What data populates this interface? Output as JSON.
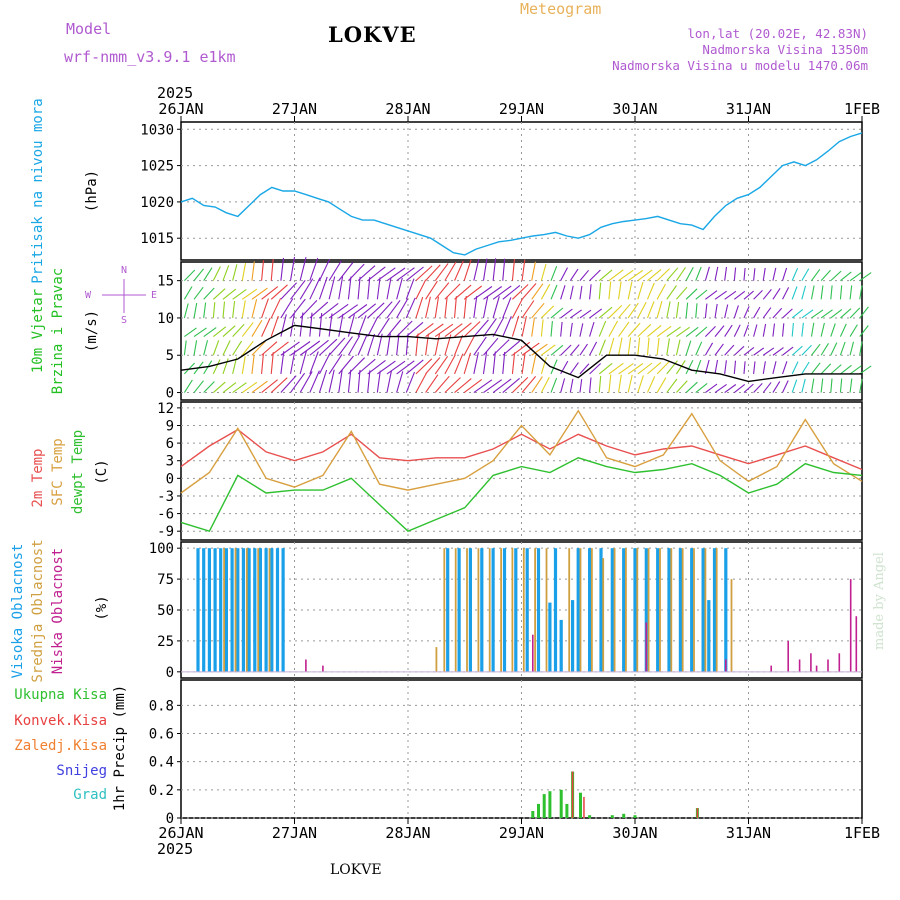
{
  "header": {
    "model_label": "Model",
    "model_version": "wrf-nmm_v3.9.1  e1km",
    "station": "LOKVE",
    "meteogram_label": "Meteogram",
    "coords": "lon,lat (20.02E, 42.83N)",
    "elevation": "Nadmorska Visina 1350m",
    "model_elevation": "Nadmorska Visina u modelu 1470.06m",
    "year_label": "2025",
    "footer_station": "LOKVE",
    "made_by": "made by Angel"
  },
  "colors": {
    "pressure": "#1aa7e6",
    "temp2m": "#e85050",
    "sfc": "#d8a040",
    "dewpt": "#2fc02f",
    "cloud_high": "#1aa0e8",
    "cloud_mid": "#d0a040",
    "cloud_low": "#c02090",
    "precip_total": "#2fc02f",
    "precip_conv": "#e84040",
    "precip_frz": "#f08030",
    "snow": "#4040e0",
    "hail": "#30c0c0",
    "wind_label": "#22c022",
    "compass": "#b05ad0"
  },
  "x_axis": {
    "labels": [
      "26JAN",
      "27JAN",
      "28JAN",
      "29JAN",
      "30JAN",
      "31JAN",
      "1FEB"
    ]
  },
  "chart_data": [
    {
      "type": "line",
      "panel": "pressure",
      "ylabel_left": "Pritisak na nivou mora",
      "ylabel_right": "(hPa)",
      "ylim": [
        1012,
        1031
      ],
      "yticks": [
        1015,
        1020,
        1025,
        1030
      ],
      "grid": true,
      "x_days": [
        0,
        0.1,
        0.2,
        0.3,
        0.4,
        0.5,
        0.6,
        0.7,
        0.8,
        0.9,
        1.0,
        1.1,
        1.2,
        1.3,
        1.4,
        1.5,
        1.6,
        1.7,
        1.8,
        1.9,
        2.0,
        2.1,
        2.2,
        2.3,
        2.4,
        2.5,
        2.6,
        2.7,
        2.8,
        2.9,
        3.0,
        3.1,
        3.2,
        3.3,
        3.4,
        3.5,
        3.6,
        3.7,
        3.8,
        3.9,
        4.0,
        4.1,
        4.2,
        4.3,
        4.4,
        4.5,
        4.6,
        4.7,
        4.8,
        4.9,
        5.0,
        5.1,
        5.2,
        5.3,
        5.4,
        5.5,
        5.6,
        5.7,
        5.8,
        5.9,
        6.0
      ],
      "series": [
        {
          "values": [
            1020,
            1020.5,
            1019.5,
            1019.3,
            1018.5,
            1018,
            1019.5,
            1021,
            1022,
            1021.5,
            1021.5,
            1021,
            1020.5,
            1020,
            1019,
            1018,
            1017.5,
            1017.5,
            1017,
            1016.5,
            1016,
            1015.5,
            1015,
            1014,
            1013,
            1012.7,
            1013.5,
            1014,
            1014.5,
            1014.7,
            1015,
            1015.3,
            1015.5,
            1015.8,
            1015.3,
            1015,
            1015.5,
            1016.5,
            1017,
            1017.3,
            1017.5,
            1017.7,
            1018,
            1017.5,
            1017,
            1016.8,
            1016.2,
            1018,
            1019.5,
            1020.5,
            1021,
            1022,
            1023.5,
            1025,
            1025.5,
            1025,
            1025.8,
            1027,
            1028.3,
            1029,
            1029.5
          ]
        }
      ]
    },
    {
      "type": "line",
      "panel": "wind",
      "ylabel_left": [
        "10m Vjetar",
        "Brzina i Pravac"
      ],
      "ylabel_right": "(m/s)",
      "ylim": [
        -1,
        17.5
      ],
      "yticks": [
        0,
        5,
        10,
        15
      ],
      "grid": true,
      "compass": {
        "n": "N",
        "e": "E",
        "w": "W",
        "s": "S"
      },
      "x_days": [
        0,
        0.25,
        0.5,
        0.75,
        1.0,
        1.25,
        1.5,
        1.75,
        2.0,
        2.25,
        2.5,
        2.75,
        3.0,
        3.25,
        3.5,
        3.75,
        4.0,
        4.25,
        4.5,
        4.75,
        5.0,
        5.25,
        5.5,
        5.75,
        6.0
      ],
      "series": [
        {
          "values": [
            3,
            3.5,
            4.5,
            7,
            9,
            8.5,
            8,
            7.5,
            7.5,
            7.2,
            7.5,
            7.8,
            7,
            3.5,
            2,
            5,
            5,
            4.5,
            3,
            2.5,
            1.5,
            2,
            2.5,
            2.5,
            2.5
          ]
        }
      ]
    },
    {
      "type": "line",
      "panel": "temperature",
      "ylabel_left": [
        "2m Temp",
        "SFC Temp",
        "dewpt Temp"
      ],
      "ylabel_right": "(C)",
      "ylim": [
        -10.5,
        13
      ],
      "yticks": [
        -9,
        -6,
        -3,
        0,
        3,
        6,
        9,
        12
      ],
      "grid": true,
      "x_days": [
        0,
        0.25,
        0.5,
        0.75,
        1.0,
        1.25,
        1.5,
        1.75,
        2.0,
        2.25,
        2.5,
        2.75,
        3.0,
        3.25,
        3.5,
        3.75,
        4.0,
        4.25,
        4.5,
        4.75,
        5.0,
        5.25,
        5.5,
        5.75,
        6.0
      ],
      "series": [
        {
          "name": "2m Temp",
          "values": [
            2,
            5.5,
            8.3,
            4.5,
            3,
            4.5,
            7.5,
            3.5,
            3,
            3.5,
            3.5,
            5,
            7.5,
            5,
            7.5,
            5.5,
            4,
            5,
            5.5,
            4,
            2.5,
            4,
            5.5,
            3.5,
            1.5
          ]
        },
        {
          "name": "SFC Temp",
          "values": [
            -2.5,
            1,
            8.5,
            0,
            -1.5,
            0.5,
            8,
            -1,
            -2,
            -1,
            0,
            3,
            9,
            4,
            11.5,
            3.5,
            2,
            4,
            11,
            3,
            -0.5,
            2,
            10,
            2.5,
            -0.5
          ]
        },
        {
          "name": "dewpt Temp",
          "values": [
            -7.5,
            -9,
            0.5,
            -2.5,
            -2,
            -2,
            0,
            -4.5,
            -9,
            -7,
            -5,
            0.5,
            2,
            1,
            3.5,
            2,
            1,
            1.5,
            2.5,
            0.5,
            -2.5,
            -1,
            2.5,
            1,
            0.5
          ]
        }
      ]
    },
    {
      "type": "bar",
      "panel": "clouds",
      "ylabel_left": [
        "Visoka Oblacnost",
        "Srednja Oblacnost",
        "Niska Oblacnost"
      ],
      "ylabel_right": "(%)",
      "ylim": [
        -5,
        105
      ],
      "yticks": [
        0,
        25,
        50,
        75,
        100
      ],
      "grid": true,
      "series": [
        {
          "name": "Visoka Oblacnost",
          "points": [
            [
              0.15,
              100
            ],
            [
              0.2,
              100
            ],
            [
              0.25,
              100
            ],
            [
              0.3,
              100
            ],
            [
              0.35,
              100
            ],
            [
              0.4,
              100
            ],
            [
              0.45,
              100
            ],
            [
              0.5,
              100
            ],
            [
              0.55,
              100
            ],
            [
              0.6,
              100
            ],
            [
              0.65,
              100
            ],
            [
              0.7,
              100
            ],
            [
              0.75,
              100
            ],
            [
              0.8,
              100
            ],
            [
              0.85,
              100
            ],
            [
              0.9,
              100
            ],
            [
              2.35,
              100
            ],
            [
              2.45,
              100
            ],
            [
              2.55,
              100
            ],
            [
              2.65,
              100
            ],
            [
              2.75,
              100
            ],
            [
              2.85,
              100
            ],
            [
              2.95,
              100
            ],
            [
              3.05,
              100
            ],
            [
              3.15,
              100
            ],
            [
              3.25,
              56
            ],
            [
              3.3,
              100
            ],
            [
              3.35,
              42
            ],
            [
              3.45,
              58
            ],
            [
              3.5,
              100
            ],
            [
              3.6,
              100
            ],
            [
              3.7,
              100
            ],
            [
              3.8,
              100
            ],
            [
              3.9,
              100
            ],
            [
              4.0,
              100
            ],
            [
              4.1,
              100
            ],
            [
              4.2,
              100
            ],
            [
              4.3,
              100
            ],
            [
              4.4,
              100
            ],
            [
              4.5,
              100
            ],
            [
              4.6,
              100
            ],
            [
              4.65,
              58
            ],
            [
              4.7,
              100
            ],
            [
              4.8,
              100
            ]
          ]
        },
        {
          "name": "Srednja Oblacnost",
          "points": [
            [
              0.38,
              100
            ],
            [
              0.48,
              100
            ],
            [
              0.58,
              100
            ],
            [
              0.68,
              100
            ],
            [
              0.78,
              100
            ],
            [
              2.25,
              20
            ],
            [
              2.32,
              100
            ],
            [
              2.42,
              100
            ],
            [
              2.52,
              100
            ],
            [
              2.62,
              100
            ],
            [
              2.72,
              100
            ],
            [
              2.82,
              100
            ],
            [
              2.92,
              100
            ],
            [
              3.02,
              100
            ],
            [
              3.12,
              100
            ],
            [
              3.22,
              100
            ],
            [
              3.42,
              100
            ],
            [
              3.52,
              100
            ],
            [
              3.62,
              100
            ],
            [
              3.72,
              92
            ],
            [
              3.82,
              100
            ],
            [
              3.92,
              100
            ],
            [
              4.02,
              100
            ],
            [
              4.12,
              100
            ],
            [
              4.22,
              100
            ],
            [
              4.32,
              100
            ],
            [
              4.42,
              100
            ],
            [
              4.52,
              100
            ],
            [
              4.62,
              100
            ],
            [
              4.72,
              100
            ],
            [
              4.85,
              75
            ]
          ]
        },
        {
          "name": "Niska Oblacnost",
          "points": [
            [
              1.1,
              10
            ],
            [
              1.25,
              5
            ],
            [
              3.1,
              30
            ],
            [
              4.1,
              40
            ],
            [
              4.8,
              10
            ],
            [
              5.2,
              5
            ],
            [
              5.35,
              25
            ],
            [
              5.45,
              10
            ],
            [
              5.55,
              15
            ],
            [
              5.6,
              5
            ],
            [
              5.7,
              10
            ],
            [
              5.8,
              15
            ],
            [
              5.9,
              75
            ],
            [
              5.95,
              45
            ]
          ]
        }
      ]
    },
    {
      "type": "bar",
      "panel": "precip",
      "ylabel_left": [
        "Ukupna Kisa",
        "Konvek.Kisa",
        "Zaledj.Kisa",
        "Snijeg",
        "Grad"
      ],
      "ylabel_right": "1hr Precip (mm)",
      "ylim": [
        0,
        0.98
      ],
      "yticks": [
        0,
        0.2,
        0.4,
        0.6,
        0.8
      ],
      "grid": true,
      "series": [
        {
          "name": "Ukupna Kisa",
          "points": [
            [
              3.1,
              0.05
            ],
            [
              3.15,
              0.1
            ],
            [
              3.2,
              0.17
            ],
            [
              3.25,
              0.19
            ],
            [
              3.35,
              0.2
            ],
            [
              3.4,
              0.1
            ],
            [
              3.45,
              0.33
            ],
            [
              3.52,
              0.18
            ],
            [
              3.6,
              0.02
            ],
            [
              3.8,
              0.02
            ],
            [
              3.9,
              0.03
            ],
            [
              4.0,
              0.02
            ],
            [
              4.55,
              0.07
            ]
          ]
        },
        {
          "name": "Konvek.Kisa",
          "points": [
            [
              3.45,
              0.33
            ],
            [
              3.55,
              0.15
            ],
            [
              4.55,
              0.07
            ]
          ]
        }
      ]
    }
  ]
}
